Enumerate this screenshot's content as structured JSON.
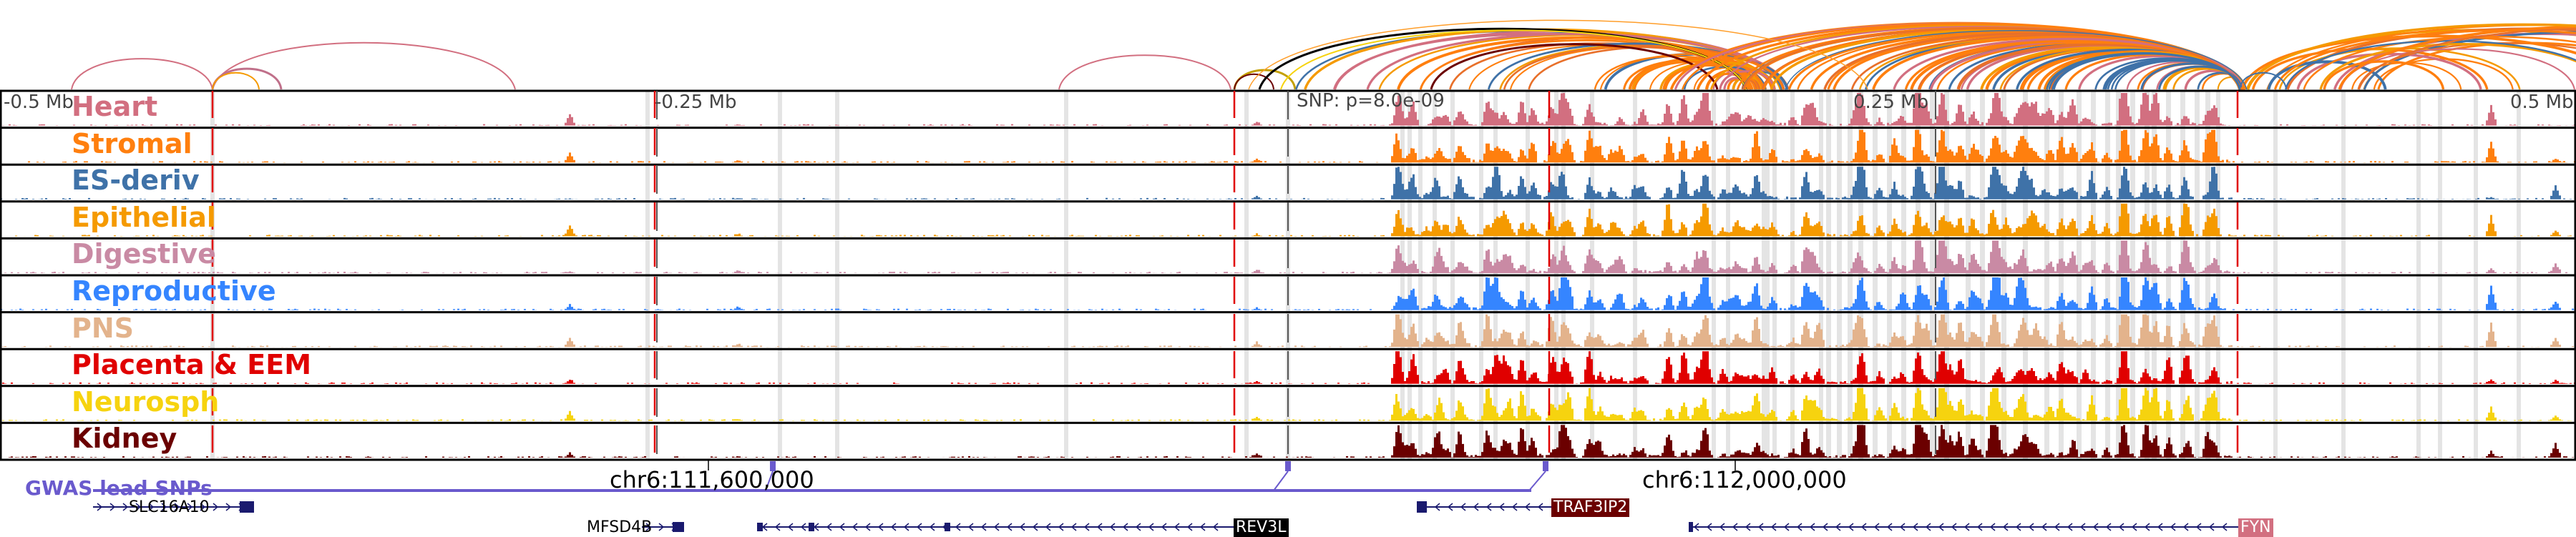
{
  "axis": {
    "labels": [
      "-0.5 Mb",
      "-0.25 Mb",
      "0.25 Mb",
      "0.5 Mb"
    ],
    "snp_label": "SNP: p=8.0e-09"
  },
  "tracks": [
    {
      "name": "Heart",
      "color": "#d26f80"
    },
    {
      "name": "Stromal",
      "color": "#ff7f0e"
    },
    {
      "name": "ES-deriv",
      "color": "#3f72a8"
    },
    {
      "name": "Epithelial",
      "color": "#f59a00"
    },
    {
      "name": "Digestive",
      "color": "#c98aa4"
    },
    {
      "name": "Reproductive",
      "color": "#3585ff"
    },
    {
      "name": "PNS",
      "color": "#e3b38c"
    },
    {
      "name": "Placenta & EEM",
      "color": "#e00000"
    },
    {
      "name": "Neurosph",
      "color": "#f6d30f"
    },
    {
      "name": "Kidney",
      "color": "#6b0000"
    }
  ],
  "coordinates": [
    "chr6:111,600,000",
    "chr6:112,000,000"
  ],
  "gwas_label": "GWAS lead SNPs",
  "genes": [
    {
      "name": "SLC16A10",
      "strand": "+",
      "color": ""
    },
    {
      "name": "MFSD4B",
      "strand": "+",
      "color": ""
    },
    {
      "name": "REV3L",
      "strand": "-",
      "color": "#000000"
    },
    {
      "name": "TRAF3IP2",
      "strand": "-",
      "color": "#6b0000"
    },
    {
      "name": "FYN",
      "strand": "-",
      "color": "#d26f80"
    }
  ],
  "colors": {
    "gwas": "#6a5acd",
    "gene": "#1a1a6e",
    "highlight": "#e4e4e4",
    "snp_line": "#e00000"
  }
}
